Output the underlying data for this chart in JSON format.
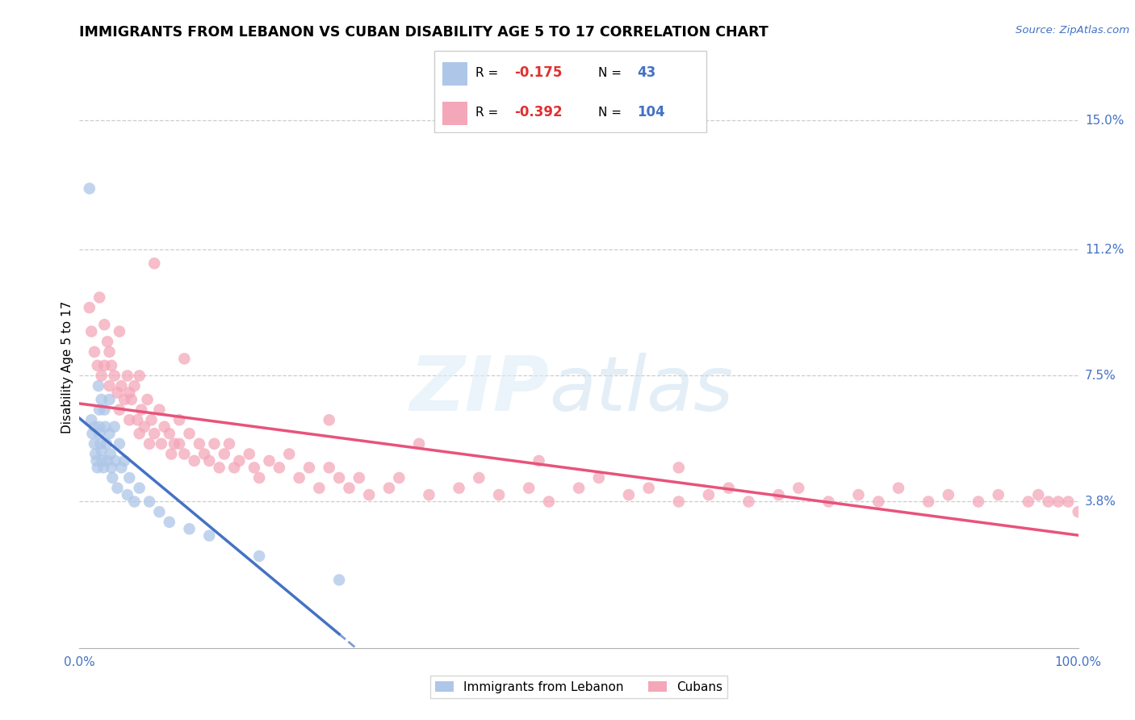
{
  "title": "IMMIGRANTS FROM LEBANON VS CUBAN DISABILITY AGE 5 TO 17 CORRELATION CHART",
  "source": "Source: ZipAtlas.com",
  "ylabel": "Disability Age 5 to 17",
  "xlim": [
    0.0,
    1.0
  ],
  "ylim": [
    -0.005,
    0.16
  ],
  "yticks": [
    0.0,
    0.038,
    0.075,
    0.112,
    0.15
  ],
  "ytick_labels": [
    "",
    "3.8%",
    "7.5%",
    "11.2%",
    "15.0%"
  ],
  "xtick_labels": [
    "0.0%",
    "100.0%"
  ],
  "legend1_r": "-0.175",
  "legend1_n": "43",
  "legend2_r": "-0.392",
  "legend2_n": "104",
  "color_lebanon": "#aec6e8",
  "color_cuba": "#f4a7b9",
  "color_lebanon_line": "#4472c4",
  "color_cuba_line": "#e8537a",
  "watermark_zip": "ZIP",
  "watermark_atlas": "atlas",
  "lebanon_x": [
    0.01,
    0.012,
    0.013,
    0.015,
    0.015,
    0.016,
    0.017,
    0.018,
    0.019,
    0.02,
    0.02,
    0.02,
    0.021,
    0.022,
    0.022,
    0.023,
    0.024,
    0.025,
    0.026,
    0.027,
    0.028,
    0.03,
    0.03,
    0.031,
    0.032,
    0.033,
    0.035,
    0.036,
    0.038,
    0.04,
    0.042,
    0.045,
    0.048,
    0.05,
    0.055,
    0.06,
    0.07,
    0.08,
    0.09,
    0.11,
    0.13,
    0.18,
    0.26
  ],
  "lebanon_y": [
    0.13,
    0.062,
    0.058,
    0.06,
    0.055,
    0.052,
    0.05,
    0.048,
    0.072,
    0.065,
    0.06,
    0.058,
    0.055,
    0.068,
    0.053,
    0.05,
    0.048,
    0.065,
    0.06,
    0.055,
    0.05,
    0.068,
    0.058,
    0.052,
    0.048,
    0.045,
    0.06,
    0.05,
    0.042,
    0.055,
    0.048,
    0.05,
    0.04,
    0.045,
    0.038,
    0.042,
    0.038,
    0.035,
    0.032,
    0.03,
    0.028,
    0.022,
    0.015
  ],
  "cuba_x": [
    0.01,
    0.012,
    0.015,
    0.018,
    0.02,
    0.022,
    0.025,
    0.025,
    0.028,
    0.03,
    0.03,
    0.032,
    0.035,
    0.038,
    0.04,
    0.04,
    0.042,
    0.045,
    0.048,
    0.05,
    0.05,
    0.052,
    0.055,
    0.058,
    0.06,
    0.06,
    0.062,
    0.065,
    0.068,
    0.07,
    0.072,
    0.075,
    0.08,
    0.082,
    0.085,
    0.09,
    0.092,
    0.095,
    0.1,
    0.1,
    0.105,
    0.11,
    0.115,
    0.12,
    0.125,
    0.13,
    0.135,
    0.14,
    0.145,
    0.15,
    0.155,
    0.16,
    0.17,
    0.175,
    0.18,
    0.19,
    0.2,
    0.21,
    0.22,
    0.23,
    0.24,
    0.25,
    0.26,
    0.27,
    0.28,
    0.29,
    0.31,
    0.32,
    0.35,
    0.38,
    0.4,
    0.42,
    0.45,
    0.47,
    0.5,
    0.52,
    0.55,
    0.57,
    0.6,
    0.63,
    0.65,
    0.67,
    0.7,
    0.72,
    0.75,
    0.78,
    0.8,
    0.82,
    0.85,
    0.87,
    0.9,
    0.92,
    0.95,
    0.96,
    0.97,
    0.98,
    0.99,
    1.0,
    0.075,
    0.105,
    0.25,
    0.34,
    0.46,
    0.6
  ],
  "cuba_y": [
    0.095,
    0.088,
    0.082,
    0.078,
    0.098,
    0.075,
    0.09,
    0.078,
    0.085,
    0.082,
    0.072,
    0.078,
    0.075,
    0.07,
    0.088,
    0.065,
    0.072,
    0.068,
    0.075,
    0.07,
    0.062,
    0.068,
    0.072,
    0.062,
    0.075,
    0.058,
    0.065,
    0.06,
    0.068,
    0.055,
    0.062,
    0.058,
    0.065,
    0.055,
    0.06,
    0.058,
    0.052,
    0.055,
    0.062,
    0.055,
    0.052,
    0.058,
    0.05,
    0.055,
    0.052,
    0.05,
    0.055,
    0.048,
    0.052,
    0.055,
    0.048,
    0.05,
    0.052,
    0.048,
    0.045,
    0.05,
    0.048,
    0.052,
    0.045,
    0.048,
    0.042,
    0.048,
    0.045,
    0.042,
    0.045,
    0.04,
    0.042,
    0.045,
    0.04,
    0.042,
    0.045,
    0.04,
    0.042,
    0.038,
    0.042,
    0.045,
    0.04,
    0.042,
    0.038,
    0.04,
    0.042,
    0.038,
    0.04,
    0.042,
    0.038,
    0.04,
    0.038,
    0.042,
    0.038,
    0.04,
    0.038,
    0.04,
    0.038,
    0.04,
    0.038,
    0.038,
    0.038,
    0.035,
    0.108,
    0.08,
    0.062,
    0.055,
    0.05,
    0.048
  ]
}
